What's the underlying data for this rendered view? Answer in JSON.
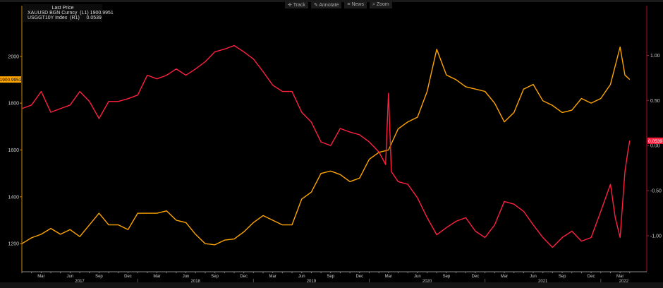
{
  "toolbar": {
    "track": "Track",
    "annotate": "Annotate",
    "news": "News",
    "zoom": "Zoom"
  },
  "legend": {
    "title": "Last Price",
    "items": [
      {
        "label": "XAUUSD BGN Curncy  (L1) 1900.9951",
        "color": "#ffa500"
      },
      {
        "label": "USGGT10Y Index  (R1)     0.0539",
        "color": "#ff2040"
      }
    ]
  },
  "chart_data": {
    "type": "line",
    "x_axis": {
      "month_ticks": [
        "Mar",
        "Jun",
        "Sep",
        "Dec"
      ],
      "years": [
        "2017",
        "2018",
        "2019",
        "2020",
        "2021",
        "2022"
      ],
      "range": [
        "2017-01",
        "2022-04"
      ]
    },
    "left_axis": {
      "ticks": [
        1200,
        1400,
        1600,
        1800,
        2000
      ],
      "range": [
        1080,
        2150
      ]
    },
    "right_axis": {
      "ticks": [
        "1.00",
        "0.50",
        "0.00",
        "-0.50",
        "-1.00"
      ],
      "tick_values": [
        1,
        0.5,
        0,
        -0.5,
        -1
      ],
      "range": [
        -1.4,
        1.38
      ]
    },
    "grid": false,
    "last_labels": {
      "left": "1900.9951",
      "right": "0.0539"
    },
    "series": [
      {
        "name": "XAUUSD BGN Curncy",
        "axis": "left",
        "color": "#ffa500",
        "x": [
          "2017-01",
          "2017-02",
          "2017-03",
          "2017-04",
          "2017-05",
          "2017-06",
          "2017-07",
          "2017-08",
          "2017-09",
          "2017-10",
          "2017-11",
          "2017-12",
          "2018-01",
          "2018-02",
          "2018-03",
          "2018-04",
          "2018-05",
          "2018-06",
          "2018-07",
          "2018-08",
          "2018-09",
          "2018-10",
          "2018-11",
          "2018-12",
          "2019-01",
          "2019-02",
          "2019-03",
          "2019-04",
          "2019-05",
          "2019-06",
          "2019-07",
          "2019-08",
          "2019-09",
          "2019-10",
          "2019-11",
          "2019-12",
          "2020-01",
          "2020-02",
          "2020-03",
          "2020-04",
          "2020-05",
          "2020-06",
          "2020-07",
          "2020-08",
          "2020-09",
          "2020-10",
          "2020-11",
          "2020-12",
          "2021-01",
          "2021-02",
          "2021-03",
          "2021-04",
          "2021-05",
          "2021-06",
          "2021-07",
          "2021-08",
          "2021-09",
          "2021-10",
          "2021-11",
          "2021-12",
          "2022-01",
          "2022-02",
          "2022-03",
          "2022-03.5",
          "2022-04"
        ],
        "y": [
          1200,
          1225,
          1240,
          1265,
          1240,
          1260,
          1230,
          1280,
          1330,
          1280,
          1280,
          1260,
          1330,
          1330,
          1330,
          1340,
          1300,
          1290,
          1240,
          1200,
          1195,
          1215,
          1220,
          1250,
          1290,
          1320,
          1300,
          1280,
          1280,
          1390,
          1420,
          1500,
          1510,
          1495,
          1465,
          1480,
          1560,
          1590,
          1600,
          1690,
          1720,
          1740,
          1850,
          2030,
          1920,
          1900,
          1870,
          1860,
          1850,
          1800,
          1720,
          1760,
          1860,
          1880,
          1810,
          1790,
          1760,
          1770,
          1820,
          1800,
          1820,
          1880,
          2040,
          1920,
          1901
        ]
      },
      {
        "name": "USGGT10Y Index",
        "axis": "right",
        "color": "#ff2040",
        "x": [
          "2017-01",
          "2017-02",
          "2017-03",
          "2017-04",
          "2017-05",
          "2017-06",
          "2017-07",
          "2017-08",
          "2017-09",
          "2017-10",
          "2017-11",
          "2017-12",
          "2018-01",
          "2018-02",
          "2018-03",
          "2018-04",
          "2018-05",
          "2018-06",
          "2018-07",
          "2018-08",
          "2018-09",
          "2018-10",
          "2018-11",
          "2018-12",
          "2019-01",
          "2019-02",
          "2019-03",
          "2019-04",
          "2019-05",
          "2019-06",
          "2019-07",
          "2019-08",
          "2019-09",
          "2019-10",
          "2019-11",
          "2019-12",
          "2020-01",
          "2020-02",
          "2020-02.7",
          "2020-03",
          "2020-03.3",
          "2020-04",
          "2020-05",
          "2020-06",
          "2020-07",
          "2020-08",
          "2020-09",
          "2020-10",
          "2020-11",
          "2020-12",
          "2021-01",
          "2021-02",
          "2021-03",
          "2021-04",
          "2021-05",
          "2021-06",
          "2021-07",
          "2021-08",
          "2021-09",
          "2021-10",
          "2021-11",
          "2021-12",
          "2022-01",
          "2022-02",
          "2022-02.5",
          "2022-03",
          "2022-03.5",
          "2022-03.8",
          "2022-04"
        ],
        "y": [
          0.41,
          0.45,
          0.6,
          0.37,
          0.41,
          0.45,
          0.6,
          0.49,
          0.3,
          0.49,
          0.49,
          0.52,
          0.56,
          0.78,
          0.74,
          0.78,
          0.85,
          0.78,
          0.85,
          0.93,
          1.04,
          1.07,
          1.11,
          1.04,
          0.96,
          0.82,
          0.67,
          0.6,
          0.6,
          0.37,
          0.26,
          0.04,
          0.0,
          0.19,
          0.15,
          0.12,
          0.04,
          -0.07,
          -0.21,
          0.58,
          -0.29,
          -0.4,
          -0.43,
          -0.58,
          -0.8,
          -0.99,
          -0.91,
          -0.84,
          -0.8,
          -0.95,
          -1.02,
          -0.88,
          -0.62,
          -0.65,
          -0.73,
          -0.88,
          -1.02,
          -1.13,
          -1.02,
          -0.95,
          -1.06,
          -1.02,
          -0.73,
          -0.43,
          -0.8,
          -1.02,
          -0.29,
          -0.07,
          0.0539
        ]
      }
    ]
  }
}
